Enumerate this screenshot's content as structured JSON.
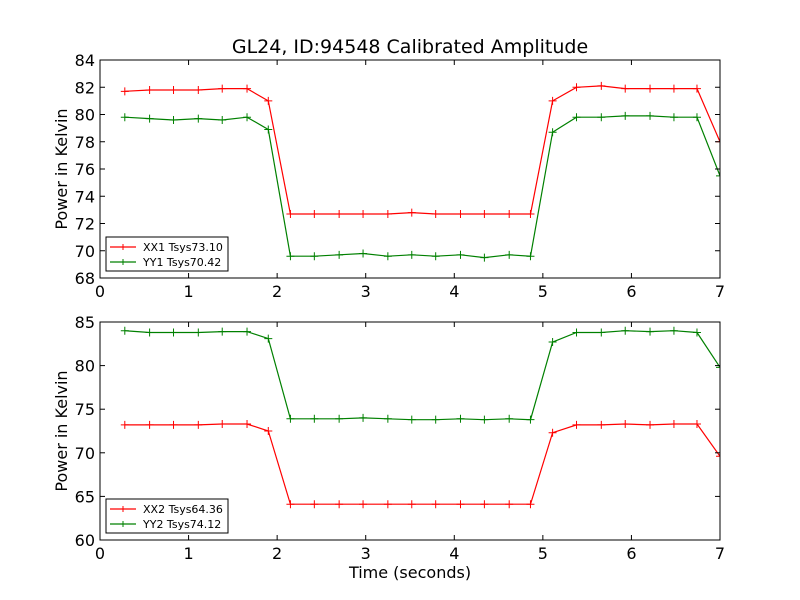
{
  "figure": {
    "title": "GL24, ID:94548 Calibrated Amplitude"
  },
  "chart_data": [
    {
      "type": "line",
      "title": "GL24, ID:94548 Calibrated Amplitude",
      "xlabel": "",
      "ylabel": "Power in Kelvin",
      "xlim": [
        0,
        7
      ],
      "ylim": [
        68,
        84
      ],
      "xticks": [
        0,
        1,
        2,
        3,
        4,
        5,
        6,
        7
      ],
      "yticks": [
        68,
        70,
        72,
        74,
        76,
        78,
        80,
        82,
        84
      ],
      "grid": false,
      "legend_position": "lower-left",
      "x": [
        0.28,
        0.56,
        0.83,
        1.11,
        1.38,
        1.66,
        1.9,
        2.15,
        2.42,
        2.7,
        2.97,
        3.25,
        3.52,
        3.79,
        4.07,
        4.34,
        4.62,
        4.86,
        5.11,
        5.38,
        5.66,
        5.93,
        6.21,
        6.48,
        6.74,
        7.0
      ],
      "series": [
        {
          "name": "XX1 Tsys73.10",
          "color": "#ff0000",
          "values": [
            81.7,
            81.8,
            81.8,
            81.8,
            81.9,
            81.9,
            81.0,
            72.7,
            72.7,
            72.7,
            72.7,
            72.7,
            72.8,
            72.7,
            72.7,
            72.7,
            72.7,
            72.7,
            81.0,
            82.0,
            82.1,
            81.9,
            81.9,
            81.9,
            81.9,
            78.0
          ]
        },
        {
          "name": "YY1 Tsys70.42",
          "color": "#008000",
          "values": [
            79.8,
            79.7,
            79.6,
            79.7,
            79.6,
            79.8,
            78.9,
            69.6,
            69.6,
            69.7,
            69.8,
            69.6,
            69.7,
            69.6,
            69.7,
            69.5,
            69.7,
            69.6,
            78.7,
            79.8,
            79.8,
            79.9,
            79.9,
            79.8,
            79.8,
            75.5
          ]
        }
      ]
    },
    {
      "type": "line",
      "title": "",
      "xlabel": "Time (seconds)",
      "ylabel": "Power in Kelvin",
      "xlim": [
        0,
        7
      ],
      "ylim": [
        60,
        85
      ],
      "xticks": [
        0,
        1,
        2,
        3,
        4,
        5,
        6,
        7
      ],
      "yticks": [
        60,
        65,
        70,
        75,
        80,
        85
      ],
      "grid": false,
      "legend_position": "lower-left",
      "x": [
        0.28,
        0.56,
        0.83,
        1.11,
        1.38,
        1.66,
        1.9,
        2.15,
        2.42,
        2.7,
        2.97,
        3.25,
        3.52,
        3.79,
        4.07,
        4.34,
        4.62,
        4.86,
        5.11,
        5.38,
        5.66,
        5.93,
        6.21,
        6.48,
        6.74,
        7.0
      ],
      "series": [
        {
          "name": "XX2 Tsys64.36",
          "color": "#ff0000",
          "values": [
            73.2,
            73.2,
            73.2,
            73.2,
            73.3,
            73.3,
            72.5,
            64.1,
            64.1,
            64.1,
            64.1,
            64.1,
            64.1,
            64.1,
            64.1,
            64.1,
            64.1,
            64.1,
            72.3,
            73.2,
            73.2,
            73.3,
            73.2,
            73.3,
            73.3,
            69.6
          ]
        },
        {
          "name": "YY2 Tsys74.12",
          "color": "#008000",
          "values": [
            84.0,
            83.8,
            83.8,
            83.8,
            83.9,
            83.9,
            83.1,
            73.9,
            73.9,
            73.9,
            74.0,
            73.9,
            73.8,
            73.8,
            73.9,
            73.8,
            73.9,
            73.8,
            82.7,
            83.8,
            83.8,
            84.0,
            83.9,
            84.0,
            83.8,
            79.8
          ]
        }
      ]
    }
  ]
}
